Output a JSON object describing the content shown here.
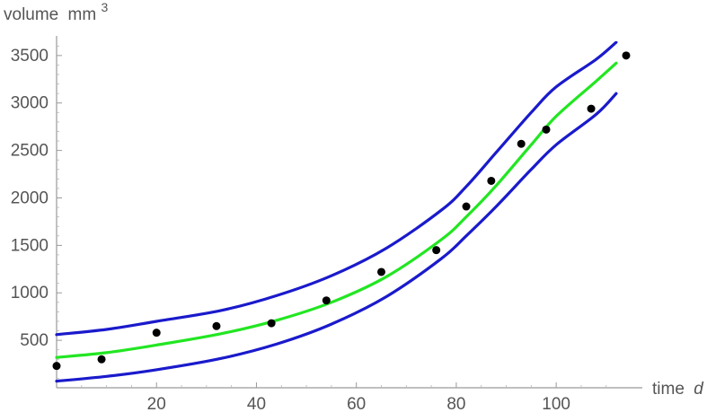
{
  "chart_data": {
    "type": "line",
    "ylabel": "volume",
    "ylabel_unit": "mm",
    "ylabel_unit_power": "3",
    "xlabel": "time",
    "xlabel_var": "d",
    "xlim": [
      0,
      114
    ],
    "ylim": [
      0,
      3650
    ],
    "xticks": [
      20,
      40,
      60,
      80,
      100
    ],
    "yticks": [
      500,
      1000,
      1500,
      2000,
      2500,
      3000,
      3500
    ],
    "grid": false,
    "colors": {
      "upper": "#1a1acc",
      "lower": "#1a1acc",
      "fit": "#22e622",
      "points": "#000000"
    },
    "series": [
      {
        "key": "upper",
        "style": "line",
        "x": [
          0,
          10,
          20,
          33,
          44,
          55,
          66,
          77,
          82,
          88,
          95,
          100,
          108,
          112
        ],
        "y": [
          560,
          615,
          700,
          815,
          970,
          1180,
          1470,
          1870,
          2120,
          2480,
          2900,
          3170,
          3460,
          3640
        ]
      },
      {
        "key": "fit",
        "style": "line",
        "x": [
          0,
          10,
          20,
          33,
          44,
          55,
          66,
          77,
          82,
          88,
          95,
          100,
          108,
          112
        ],
        "y": [
          320,
          370,
          450,
          570,
          710,
          900,
          1170,
          1560,
          1800,
          2130,
          2560,
          2860,
          3230,
          3420
        ]
      },
      {
        "key": "lower",
        "style": "line",
        "x": [
          0,
          10,
          20,
          33,
          44,
          55,
          66,
          77,
          82,
          88,
          95,
          100,
          108,
          112
        ],
        "y": [
          70,
          120,
          190,
          310,
          460,
          670,
          960,
          1360,
          1600,
          1910,
          2300,
          2560,
          2880,
          3100
        ]
      },
      {
        "key": "points",
        "style": "scatter",
        "x": [
          0,
          9,
          20,
          32,
          43,
          54,
          65,
          76,
          82,
          87,
          93,
          98,
          107,
          114
        ],
        "y": [
          230,
          300,
          580,
          650,
          680,
          920,
          1220,
          1450,
          1910,
          2180,
          2570,
          2720,
          2940,
          3500
        ]
      }
    ]
  }
}
